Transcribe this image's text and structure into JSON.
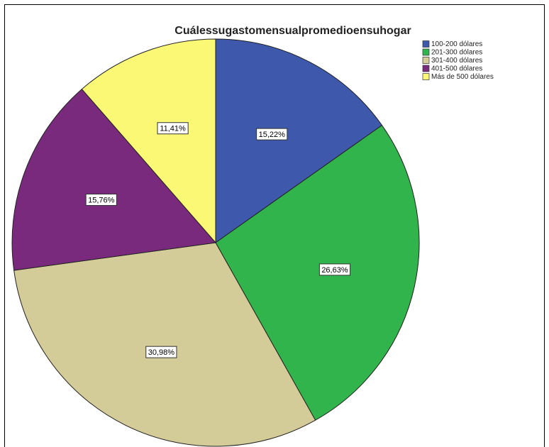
{
  "chart_data": {
    "type": "pie",
    "title": "Cuálessugastomensualpromedioensuhogar",
    "categories": [
      "100-200 dólares",
      "201-300 dólares",
      "301-400 dólares",
      "401-500 dólares",
      "Más de 500 dólares"
    ],
    "values": [
      15.22,
      26.63,
      30.98,
      15.76,
      11.41
    ],
    "value_labels": [
      "15,22%",
      "26,63%",
      "30,98%",
      "15,76%",
      "11,41%"
    ],
    "colors": [
      "#3e58ac",
      "#31b44b",
      "#d3cb98",
      "#7a2a7c",
      "#fbf875"
    ],
    "legend": "upper right"
  }
}
